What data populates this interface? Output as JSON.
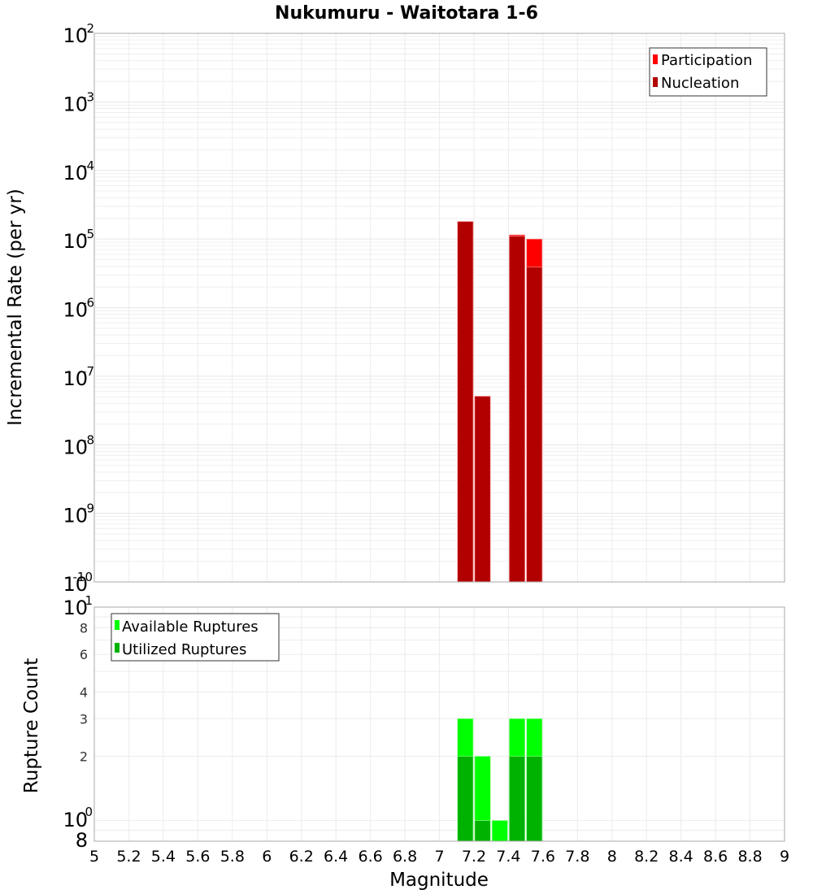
{
  "chart_data": [
    {
      "type": "bar",
      "title": "Nukumuru - Waitotara 1-6",
      "xlabel": "Magnitude",
      "ylabel": "Incremental Rate (per yr)",
      "yscale": "log",
      "ylim": [
        1e-10,
        0.01
      ],
      "xlim": [
        5,
        9
      ],
      "bin_width": 0.1,
      "x": [
        7.15,
        7.25,
        7.45,
        7.55
      ],
      "series": [
        {
          "name": "Participation",
          "color": "#ff0000",
          "values": [
            1.8e-05,
            5.1e-08,
            1.15e-05,
            1e-05
          ]
        },
        {
          "name": "Nucleation",
          "color": "#b20000",
          "values": [
            1.8e-05,
            5.1e-08,
            1.1e-05,
            3.9e-06
          ]
        }
      ],
      "legend_position": "upper-right",
      "grid": true
    },
    {
      "type": "bar",
      "xlabel": "Magnitude",
      "ylabel": "Rupture Count",
      "yscale": "log",
      "ylim": [
        0.8,
        10
      ],
      "xlim": [
        5,
        9
      ],
      "bin_width": 0.1,
      "x": [
        7.15,
        7.25,
        7.35,
        7.45,
        7.55
      ],
      "series": [
        {
          "name": "Available Ruptures",
          "color": "#00ff00",
          "values": [
            3,
            2,
            1,
            3,
            3
          ]
        },
        {
          "name": "Utilized Ruptures",
          "color": "#00b200",
          "values": [
            2,
            1,
            0,
            2,
            2
          ]
        }
      ],
      "legend_position": "upper-left",
      "grid": true
    }
  ],
  "labels": {
    "title": "Nukumuru - Waitotara 1-6",
    "xlabel": "Magnitude",
    "top_ylabel": "Incremental Rate (per yr)",
    "bottom_ylabel": "Rupture Count",
    "top_legend": [
      "Participation",
      "Nucleation"
    ],
    "bottom_legend": [
      "Available Ruptures",
      "Utilized Ruptures"
    ],
    "x_ticks": [
      "5",
      "5.2",
      "5.4",
      "5.6",
      "5.8",
      "6",
      "6.2",
      "6.4",
      "6.6",
      "6.8",
      "7",
      "7.2",
      "7.4",
      "7.6",
      "7.8",
      "8",
      "8.2",
      "8.4",
      "8.6",
      "8.8",
      "9"
    ],
    "top_y_exponents": [
      "-2",
      "-3",
      "-4",
      "-5",
      "-6",
      "-7",
      "-8",
      "-9",
      "-10"
    ],
    "bottom_y_ticks": [
      "8",
      "6",
      "4",
      "3",
      "2"
    ]
  }
}
